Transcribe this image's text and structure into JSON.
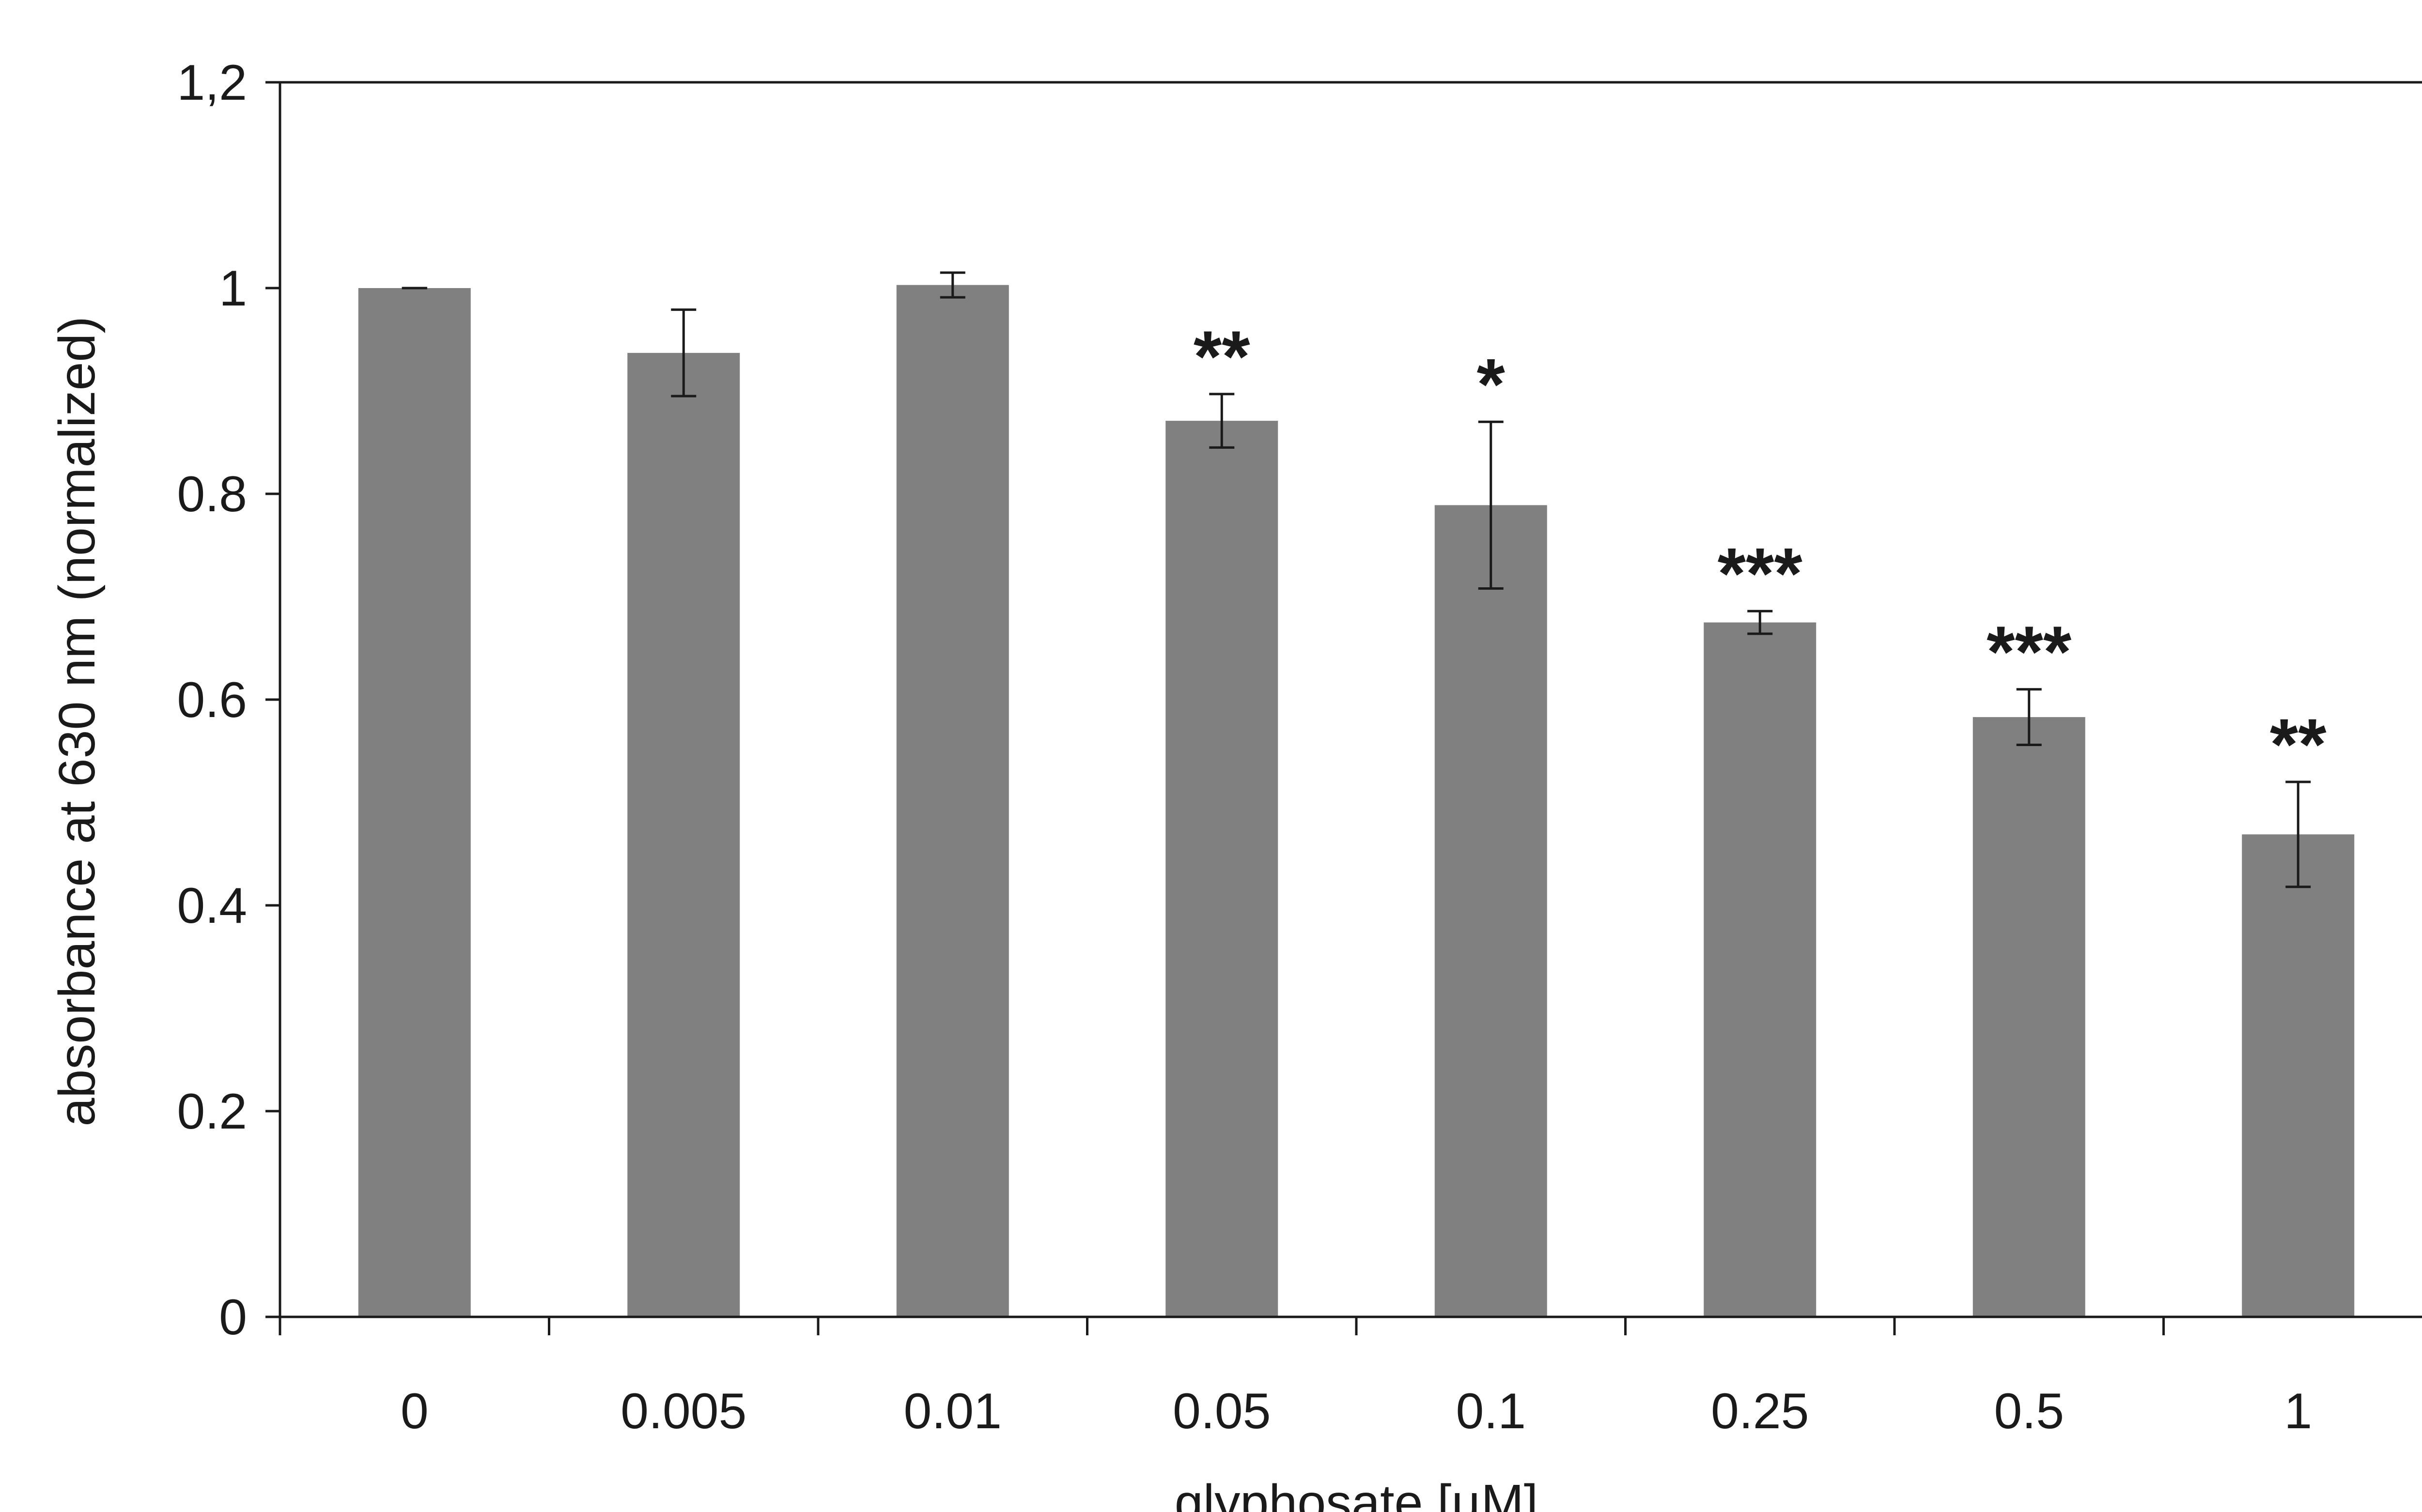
{
  "chart_data": {
    "type": "bar",
    "categories": [
      "0",
      "0.005",
      "0.01",
      "0.05",
      "0.1",
      "0.25",
      "0.5",
      "1"
    ],
    "values": [
      1.0,
      0.937,
      1.003,
      0.871,
      0.789,
      0.675,
      0.583,
      0.469
    ],
    "error": [
      0.0,
      0.042,
      0.012,
      0.026,
      0.081,
      0.011,
      0.027,
      0.051
    ],
    "significance": [
      "",
      "",
      "",
      "**",
      "*",
      "***",
      "***",
      "**"
    ],
    "xlabel": "glyphosate [µM]",
    "ylabel": "absorbance at 630 nm (normalized)",
    "ylim": [
      0,
      1.2
    ],
    "yticks": [
      0,
      0.2,
      0.4,
      0.6,
      0.8,
      1,
      1.2
    ],
    "ytick_labels": [
      "0",
      "0.2",
      "0.4",
      "0.6",
      "0.8",
      "1",
      "1,2"
    ],
    "grid": false,
    "legend": "none",
    "colors": {
      "bar": "#808080",
      "axis": "#1a1a1a",
      "error": "#1a1a1a"
    }
  }
}
